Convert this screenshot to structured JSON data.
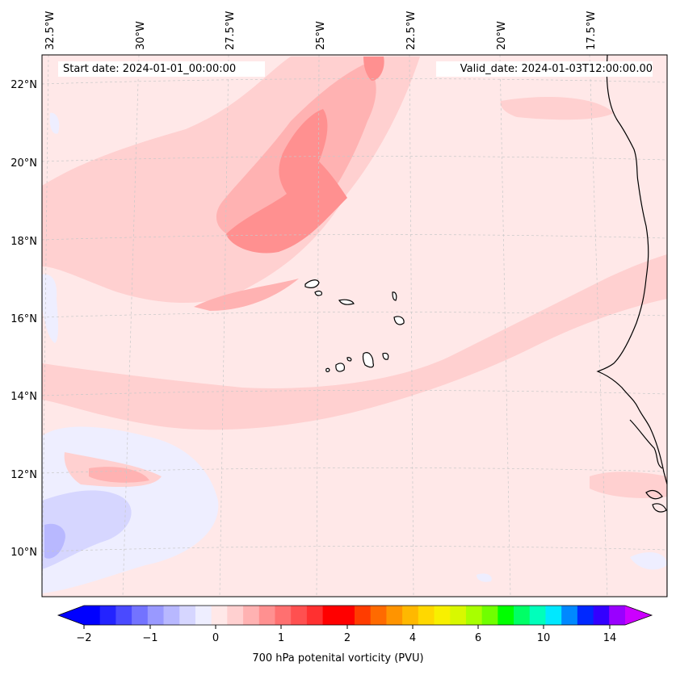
{
  "map": {
    "start_date": "Start date: 2024-01-01_00:00:00",
    "valid_date": "Valid_date: 2024-01-03T12:00:00.00",
    "lon_labels": [
      "32.5°W",
      "30°W",
      "27.5°W",
      "25°W",
      "22.5°W",
      "20°W",
      "17.5°W"
    ],
    "lat_labels": [
      "22°N",
      "20°N",
      "18°N",
      "16°N",
      "14°N",
      "12°N",
      "10°N"
    ],
    "background_color": "#ffe8e8"
  },
  "colorbar": {
    "label": "700 hPa potenital vorticity (PVU)",
    "tick_labels": [
      "−2",
      "−1",
      "0",
      "1",
      "2",
      "4",
      "6",
      "10",
      "14"
    ],
    "colors": [
      "#0000ff",
      "#2323ff",
      "#4a4aff",
      "#7373ff",
      "#9999ff",
      "#b8b8ff",
      "#d6d6ff",
      "#eeeeff",
      "#ffe8e8",
      "#ffd0d0",
      "#ffb2b2",
      "#ff9090",
      "#ff7070",
      "#ff5050",
      "#ff3030",
      "#ff0000",
      "#ff0000",
      "#ff3c00",
      "#ff6a00",
      "#ff9400",
      "#ffb800",
      "#ffd800",
      "#f8f000",
      "#d8f800",
      "#a8ff00",
      "#70ff00",
      "#00ff00",
      "#00ff66",
      "#00ffbb",
      "#00e8ff",
      "#0088ff",
      "#0028ff",
      "#3300ff",
      "#9900ff"
    ],
    "extend_min_color": "#0000ff",
    "extend_max_color": "#cc00ff"
  }
}
